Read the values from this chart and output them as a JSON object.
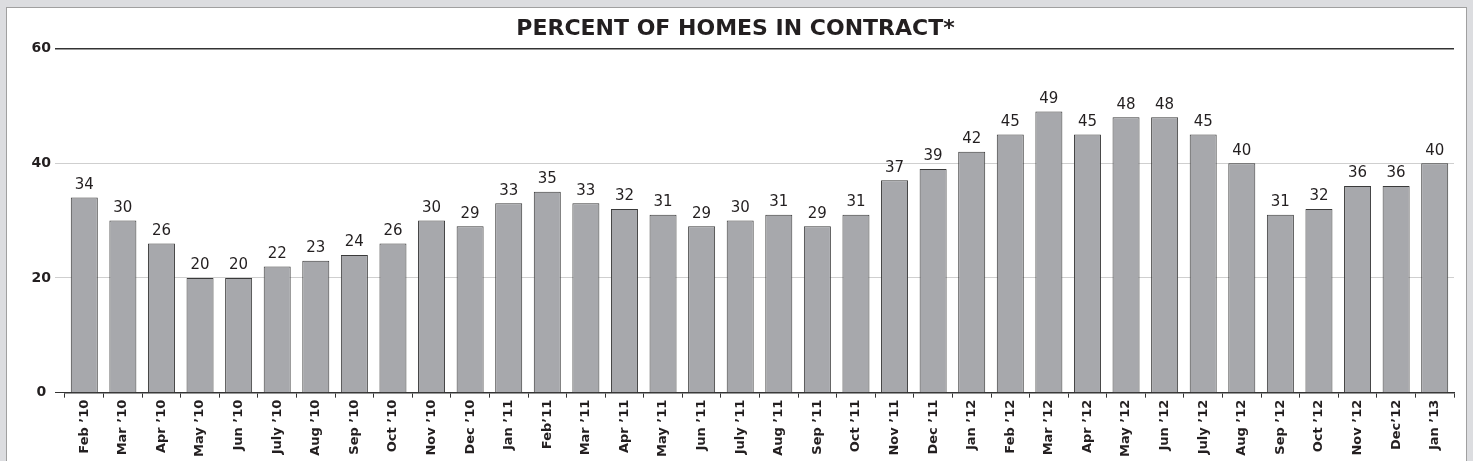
{
  "chart_data": {
    "type": "bar",
    "title": "PERCENT OF HOMES IN CONTRACT*",
    "categories": [
      "Feb ’10",
      "Mar ’10",
      "Apr ’10",
      "May ’10",
      "Jun ’10",
      "July ’10",
      "Aug ’10",
      "Sep ’10",
      "Oct ’10",
      "Nov ’10",
      "Dec ’10",
      "Jan ’11",
      "Feb’11",
      "Mar ’11",
      "Apr ’11",
      "May ’11",
      "Jun ’11",
      "July ’11",
      "Aug ’11",
      "Sep ’11",
      "Oct ’11",
      "Nov ’11",
      "Dec ’11",
      "Jan ’12",
      "Feb ’12",
      "Mar ’12",
      "Apr ’12",
      "May ’12",
      "Jun ’12",
      "July ’12",
      "Aug ’12",
      "Sep ’12",
      "Oct ’12",
      "Nov ’12",
      "Dec’12",
      "Jan ’13"
    ],
    "values": [
      34,
      30,
      26,
      20,
      20,
      22,
      23,
      24,
      26,
      30,
      29,
      33,
      35,
      33,
      32,
      31,
      29,
      30,
      31,
      29,
      31,
      37,
      39,
      42,
      45,
      49,
      45,
      48,
      48,
      45,
      40,
      31,
      32,
      36,
      36,
      40
    ],
    "color": "#a7a8ac",
    "ylim": [
      0,
      60
    ],
    "yticks": [
      0,
      20,
      40,
      60
    ],
    "grid": "y",
    "data_labels": true
  }
}
